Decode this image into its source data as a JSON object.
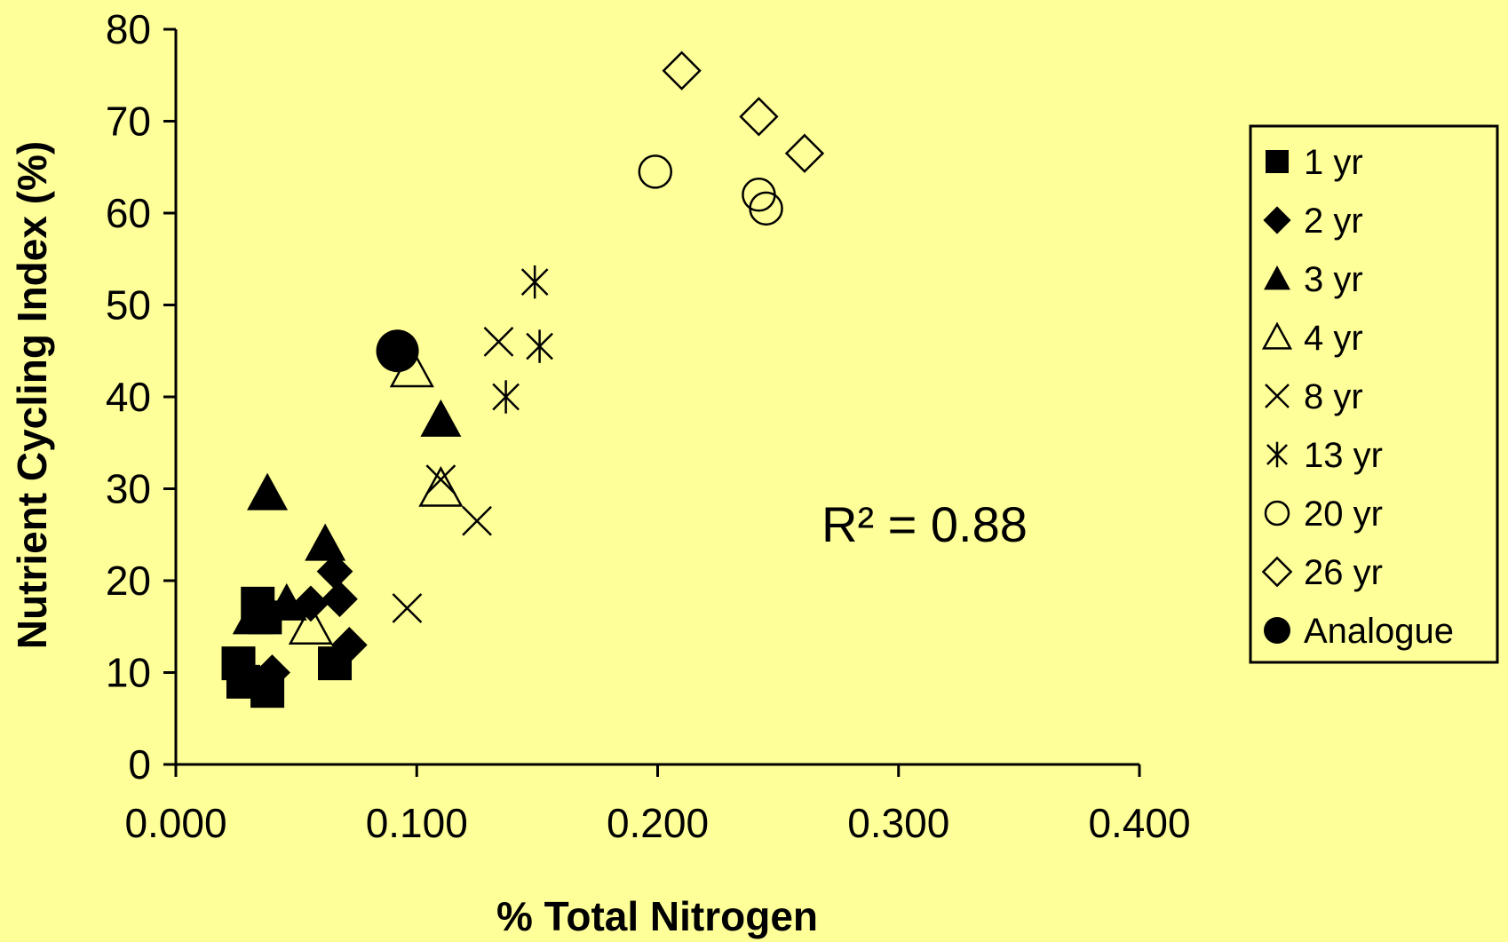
{
  "chart_data": {
    "type": "scatter",
    "title": "",
    "xlabel": "% Total Nitrogen",
    "ylabel": "Nutrient Cycling Index (%)",
    "xlim": [
      0,
      0.4
    ],
    "ylim": [
      0,
      80
    ],
    "x_ticks": [
      "0.000",
      "0.100",
      "0.200",
      "0.300",
      "0.400"
    ],
    "y_ticks": [
      "0",
      "10",
      "20",
      "30",
      "40",
      "50",
      "60",
      "70",
      "80"
    ],
    "x_tick_values": [
      0,
      0.1,
      0.2,
      0.3,
      0.4
    ],
    "y_tick_values": [
      0,
      10,
      20,
      30,
      40,
      50,
      60,
      70,
      80
    ],
    "grid": false,
    "legend_position": "right",
    "annotation": "R² = 0.88",
    "series": [
      {
        "name": "1 yr",
        "marker": "square-filled",
        "points": [
          [
            0.026,
            11
          ],
          [
            0.028,
            9
          ],
          [
            0.038,
            8
          ],
          [
            0.034,
            17.5
          ],
          [
            0.037,
            16
          ],
          [
            0.066,
            11
          ]
        ]
      },
      {
        "name": "2 yr",
        "marker": "diamond-filled",
        "points": [
          [
            0.04,
            10
          ],
          [
            0.056,
            17.5
          ],
          [
            0.066,
            21
          ],
          [
            0.068,
            18
          ],
          [
            0.072,
            13
          ]
        ]
      },
      {
        "name": "3 yr",
        "marker": "triangle-filled",
        "points": [
          [
            0.038,
            29.5
          ],
          [
            0.032,
            16
          ],
          [
            0.046,
            17.5
          ],
          [
            0.062,
            24
          ],
          [
            0.11,
            37.5
          ]
        ]
      },
      {
        "name": "4 yr",
        "marker": "triangle-open",
        "points": [
          [
            0.056,
            15
          ],
          [
            0.098,
            43
          ],
          [
            0.11,
            30
          ]
        ]
      },
      {
        "name": "8 yr",
        "marker": "x",
        "points": [
          [
            0.096,
            17
          ],
          [
            0.11,
            31
          ],
          [
            0.125,
            26.5
          ],
          [
            0.134,
            46
          ]
        ]
      },
      {
        "name": "13 yr",
        "marker": "star",
        "points": [
          [
            0.137,
            40
          ],
          [
            0.149,
            52.5
          ],
          [
            0.151,
            45.5
          ]
        ]
      },
      {
        "name": "20 yr",
        "marker": "circle-open",
        "points": [
          [
            0.199,
            64.5
          ],
          [
            0.242,
            62
          ],
          [
            0.245,
            60.5
          ]
        ]
      },
      {
        "name": "26 yr",
        "marker": "diamond-open",
        "points": [
          [
            0.21,
            75.5
          ],
          [
            0.242,
            70.5
          ],
          [
            0.261,
            66.5
          ]
        ]
      },
      {
        "name": "Analogue",
        "marker": "circle-filled",
        "points": [
          [
            0.092,
            45
          ]
        ]
      }
    ]
  }
}
